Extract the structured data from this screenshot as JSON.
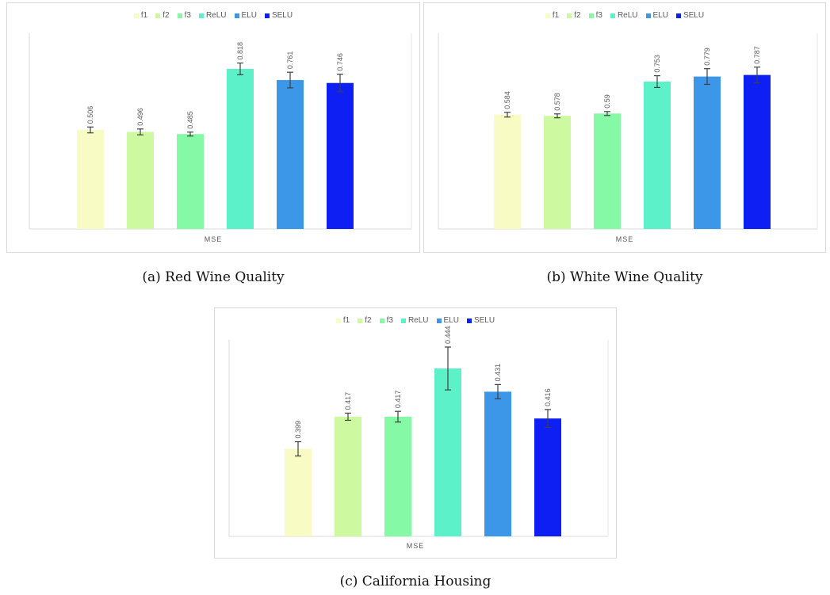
{
  "charts": [
    {
      "caption": "(a) Red Wine Quality",
      "chart_data": {
        "type": "bar",
        "xlabel": "MSE",
        "categories": [
          "MSE"
        ],
        "ylim": [
          0,
          1.0
        ],
        "grid": false,
        "legend_position": "top",
        "series": [
          {
            "name": "f1",
            "values": [
              0.506
            ],
            "error": 0.015,
            "color": "#f8fcc4"
          },
          {
            "name": "f2",
            "values": [
              0.496
            ],
            "error": 0.015,
            "color": "#cdf9a1"
          },
          {
            "name": "f3",
            "values": [
              0.485
            ],
            "error": 0.01,
            "color": "#85f9a6"
          },
          {
            "name": "ReLU",
            "values": [
              0.818
            ],
            "error": 0.03,
            "color": "#5cf1c8"
          },
          {
            "name": "ELU",
            "values": [
              0.761
            ],
            "error": 0.04,
            "color": "#3c97e8"
          },
          {
            "name": "SELU",
            "values": [
              0.746
            ],
            "error": 0.045,
            "color": "#0d1ff2"
          }
        ]
      }
    },
    {
      "caption": "(b) White Wine Quality",
      "chart_data": {
        "type": "bar",
        "xlabel": "MSE",
        "categories": [
          "MSE"
        ],
        "ylim": [
          0,
          1.0
        ],
        "grid": false,
        "legend_position": "top",
        "series": [
          {
            "name": "f1",
            "values": [
              0.584
            ],
            "error": 0.012,
            "color": "#f8fcc4"
          },
          {
            "name": "f2",
            "values": [
              0.578
            ],
            "error": 0.01,
            "color": "#cdf9a1"
          },
          {
            "name": "f3",
            "values": [
              0.59
            ],
            "error": 0.01,
            "color": "#85f9a6"
          },
          {
            "name": "ReLU",
            "values": [
              0.753
            ],
            "error": 0.03,
            "color": "#5cf1c8"
          },
          {
            "name": "ELU",
            "values": [
              0.779
            ],
            "error": 0.04,
            "color": "#3c97e8"
          },
          {
            "name": "SELU",
            "values": [
              0.787
            ],
            "error": 0.04,
            "color": "#0d1ff2"
          }
        ]
      }
    },
    {
      "caption": "(c) California Housing",
      "chart_data": {
        "type": "bar",
        "xlabel": "MSE",
        "categories": [
          "MSE"
        ],
        "ylim": [
          0.35,
          0.46
        ],
        "grid": false,
        "legend_position": "top",
        "series": [
          {
            "name": "f1",
            "values": [
              0.399
            ],
            "error": 0.004,
            "color": "#f8fcc4"
          },
          {
            "name": "f2",
            "values": [
              0.417
            ],
            "error": 0.002,
            "color": "#cdf9a1"
          },
          {
            "name": "f3",
            "values": [
              0.417
            ],
            "error": 0.003,
            "color": "#85f9a6"
          },
          {
            "name": "ReLU",
            "values": [
              0.444
            ],
            "error": 0.012,
            "color": "#5cf1c8"
          },
          {
            "name": "ELU",
            "values": [
              0.431
            ],
            "error": 0.004,
            "color": "#3c97e8"
          },
          {
            "name": "SELU",
            "values": [
              0.416
            ],
            "error": 0.005,
            "color": "#0d1ff2"
          }
        ]
      }
    }
  ]
}
